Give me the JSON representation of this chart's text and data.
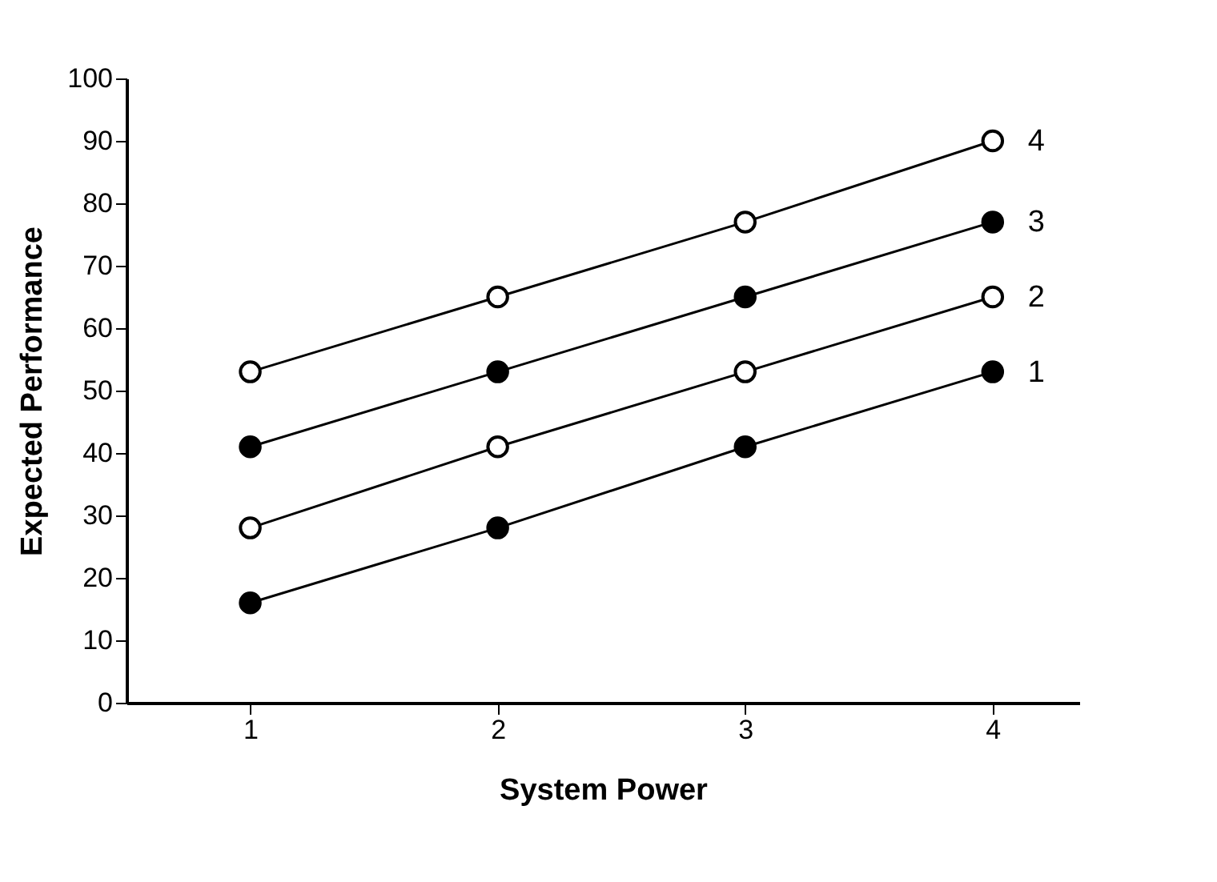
{
  "chart_data": {
    "type": "line",
    "xlabel": "System Power",
    "ylabel": "Expected Performance",
    "x": [
      1,
      2,
      3,
      4
    ],
    "xlim": [
      0.5,
      4.35
    ],
    "xticks": [
      1,
      2,
      3,
      4
    ],
    "ylim": [
      0,
      100
    ],
    "yticks": [
      0,
      10,
      20,
      30,
      40,
      50,
      60,
      70,
      80,
      90,
      100
    ],
    "series": [
      {
        "name": "1",
        "color": "#000000",
        "values": [
          16,
          28,
          41,
          53
        ]
      },
      {
        "name": "2",
        "color": "#000000",
        "values": [
          28,
          41,
          53,
          65
        ]
      },
      {
        "name": "3",
        "color": "#000000",
        "values": [
          41,
          53,
          65,
          77
        ]
      },
      {
        "name": "4",
        "color": "#000000",
        "values": [
          53,
          65,
          77,
          90
        ]
      }
    ],
    "marker": "circle",
    "line_style": "solid",
    "grid": false,
    "legend": false
  }
}
